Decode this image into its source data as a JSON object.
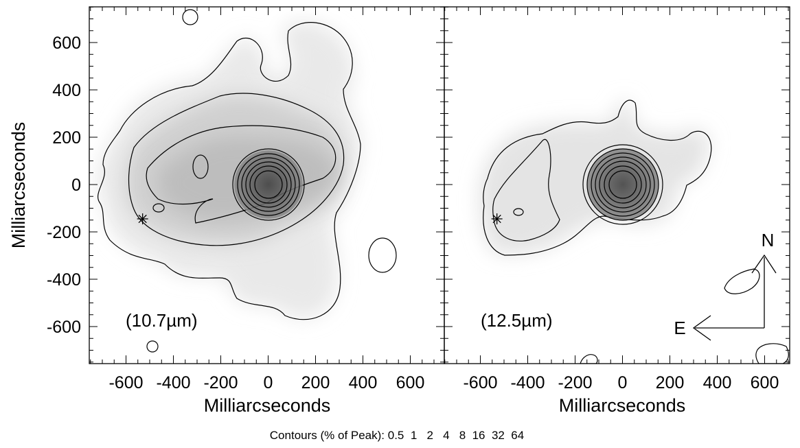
{
  "chart_data": [
    {
      "type": "heatmap",
      "subtype": "contour-image",
      "panel_label": "(10.7µm)",
      "xlabel": "Milliarcseconds",
      "ylabel": "Milliarcseconds",
      "xlim": [
        -750,
        750
      ],
      "ylim": [
        -750,
        750
      ],
      "xticks": [
        -600,
        -400,
        -200,
        0,
        200,
        400,
        600
      ],
      "yticks": [
        -600,
        -400,
        -200,
        0,
        200,
        400,
        600
      ],
      "peak": {
        "x": 0,
        "y": 0
      },
      "star_marker": {
        "x": -530,
        "y": -145
      },
      "secondary_peaks": [
        {
          "x": -300,
          "y": 80
        },
        {
          "x": -470,
          "y": -100
        },
        {
          "x": 230,
          "y": 160
        },
        {
          "x": 220,
          "y": 30
        }
      ],
      "isolated_islands": [
        {
          "x": -320,
          "y": 710
        },
        {
          "x": 490,
          "y": -300
        },
        {
          "x": -490,
          "y": -680
        }
      ]
    },
    {
      "type": "heatmap",
      "subtype": "contour-image",
      "panel_label": "(12.5µm)",
      "xlabel": "Milliarcseconds",
      "ylabel": "",
      "xlim": [
        -750,
        750
      ],
      "ylim": [
        -750,
        750
      ],
      "xticks": [
        -600,
        -400,
        -200,
        0,
        200,
        400,
        600
      ],
      "yticks": [
        -600,
        -400,
        -200,
        0,
        200,
        400,
        600
      ],
      "peak": {
        "x": 0,
        "y": 0
      },
      "star_marker": {
        "x": -530,
        "y": -145
      },
      "secondary_peaks": [
        {
          "x": -440,
          "y": -120
        },
        {
          "x": -290,
          "y": 110
        }
      ],
      "isolated_islands": [
        {
          "x": 590,
          "y": -410
        },
        {
          "x": 650,
          "y": -710
        },
        {
          "x": -140,
          "y": -740
        }
      ],
      "compass": {
        "north_label": "N",
        "east_label": "E"
      }
    }
  ],
  "contour_levels": [
    0.5,
    1,
    2,
    4,
    8,
    16,
    32,
    64
  ],
  "caption": "Contours (% of Peak): 0.5  1   2   4   8  16  32  64"
}
